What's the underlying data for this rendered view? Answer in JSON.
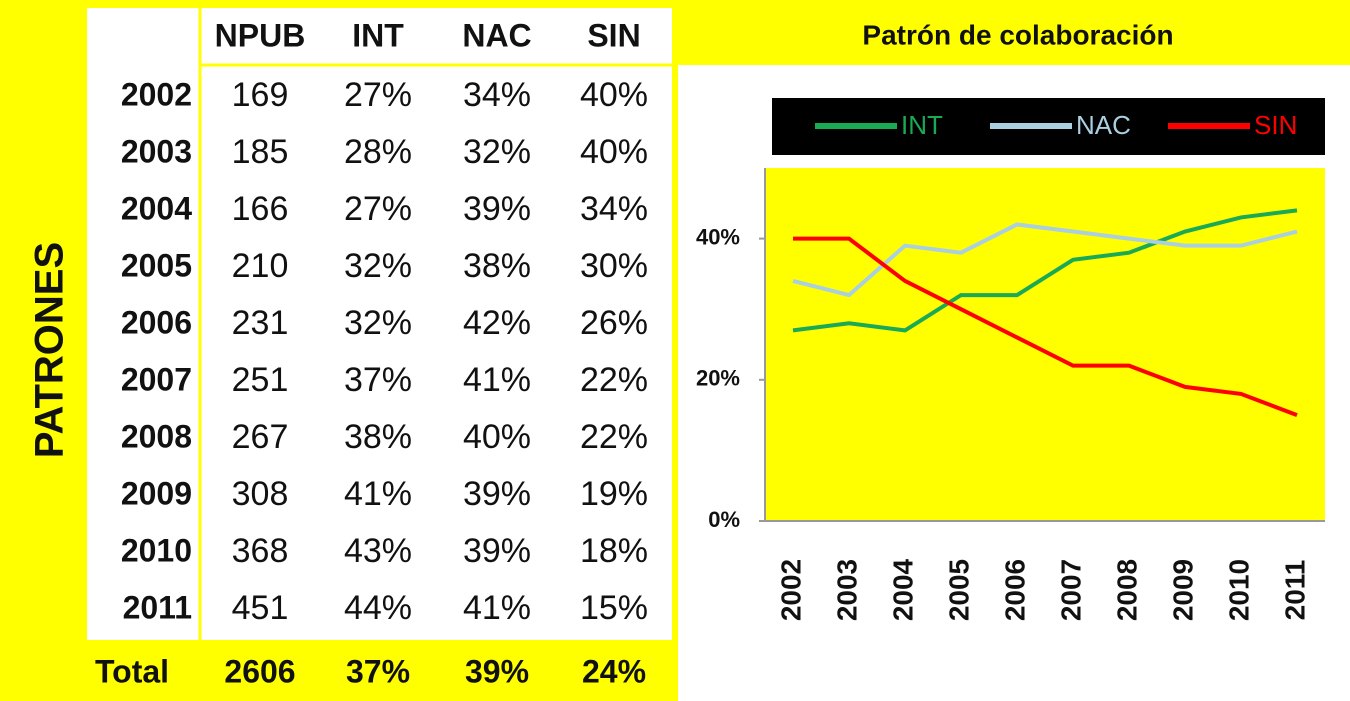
{
  "side_label": "PATRONES",
  "table": {
    "headers": [
      "NPUB",
      "INT",
      "NAC",
      "SIN"
    ],
    "rows": [
      [
        "2002",
        "169",
        "27%",
        "34%",
        "40%"
      ],
      [
        "2003",
        "185",
        "28%",
        "32%",
        "40%"
      ],
      [
        "2004",
        "166",
        "27%",
        "39%",
        "34%"
      ],
      [
        "2005",
        "210",
        "32%",
        "38%",
        "30%"
      ],
      [
        "2006",
        "231",
        "32%",
        "42%",
        "26%"
      ],
      [
        "2007",
        "251",
        "37%",
        "41%",
        "22%"
      ],
      [
        "2008",
        "267",
        "38%",
        "40%",
        "22%"
      ],
      [
        "2009",
        "308",
        "41%",
        "39%",
        "19%"
      ],
      [
        "2010",
        "368",
        "43%",
        "39%",
        "18%"
      ],
      [
        "2011",
        "451",
        "44%",
        "41%",
        "15%"
      ]
    ],
    "total": [
      "Total",
      "2606",
      "37%",
      "39%",
      "24%"
    ]
  },
  "chart_data": {
    "type": "line",
    "title": "Patrón de colaboración",
    "categories": [
      "2002",
      "2003",
      "2004",
      "2005",
      "2006",
      "2007",
      "2008",
      "2009",
      "2010",
      "2011"
    ],
    "series": [
      {
        "name": "INT",
        "color": "#1aaa55",
        "values": [
          27,
          28,
          27,
          32,
          32,
          37,
          38,
          41,
          43,
          44
        ]
      },
      {
        "name": "NAC",
        "color": "#a9cfe0",
        "values": [
          34,
          32,
          39,
          38,
          42,
          41,
          40,
          39,
          39,
          41
        ]
      },
      {
        "name": "SIN",
        "color": "#ff0000",
        "values": [
          40,
          40,
          34,
          30,
          26,
          22,
          22,
          19,
          18,
          15
        ]
      }
    ],
    "ylim": [
      0,
      50
    ],
    "yticks": [
      {
        "value": 0,
        "label": "0%"
      },
      {
        "value": 20,
        "label": "20%"
      },
      {
        "value": 40,
        "label": "40%"
      }
    ],
    "legend": "top"
  }
}
